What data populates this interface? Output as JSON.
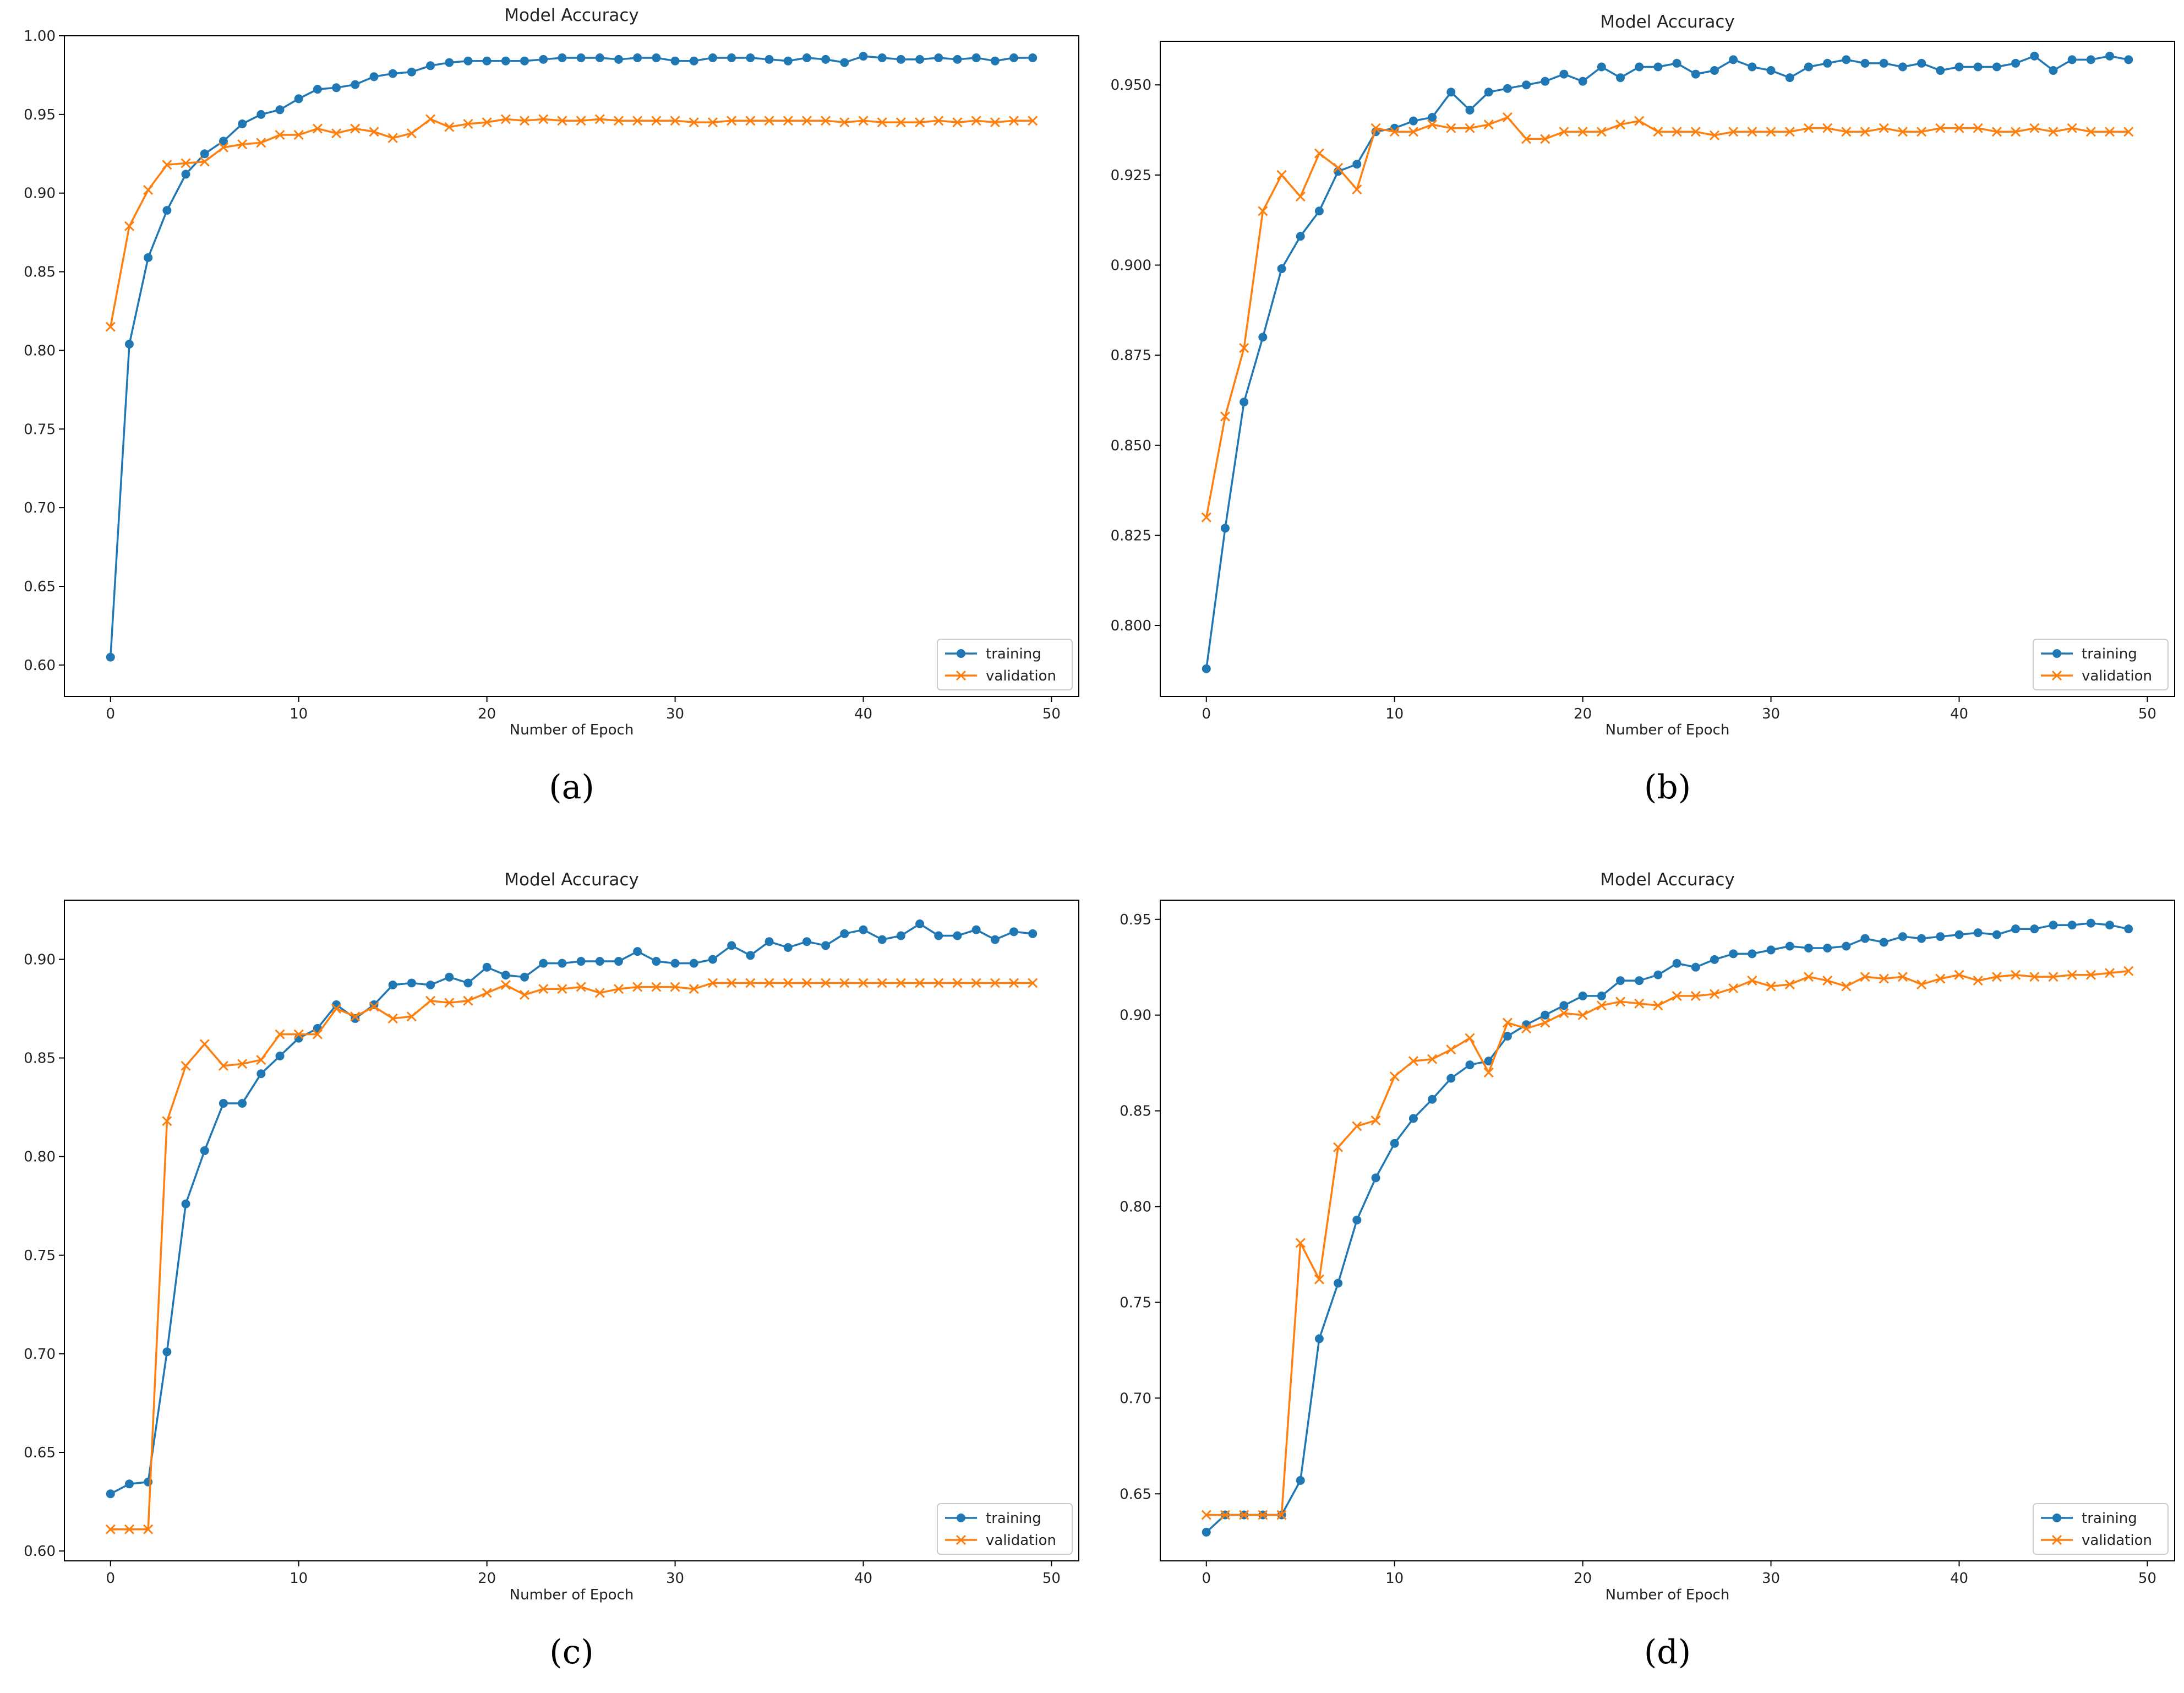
{
  "colors": {
    "training": "#1f77b4",
    "validation": "#ff7f0e",
    "axes": "#000000"
  },
  "chart_data": [
    {
      "type": "line",
      "caption": "(a)",
      "title": "Model Accuracy",
      "xlabel": "Number of Epoch",
      "ylabel": "",
      "xlim": [
        -2.45,
        51.45
      ],
      "ylim": [
        0.58,
        1.0
      ],
      "xticks": [
        0,
        10,
        20,
        30,
        40,
        50
      ],
      "xtick_labels": [
        "0",
        "10",
        "20",
        "30",
        "40",
        "50"
      ],
      "yticks": [
        0.6,
        0.65,
        0.7,
        0.75,
        0.8,
        0.85,
        0.9,
        0.95,
        1.0
      ],
      "ytick_labels": [
        "0.60",
        "0.65",
        "0.70",
        "0.75",
        "0.80",
        "0.85",
        "0.90",
        "0.95",
        "1.00"
      ],
      "legend": {
        "position": "bottom-right",
        "entries": [
          "training",
          "validation"
        ]
      },
      "series": [
        {
          "name": "training",
          "marker": "circle",
          "values": [
            0.605,
            0.804,
            0.859,
            0.889,
            0.912,
            0.925,
            0.933,
            0.944,
            0.95,
            0.953,
            0.96,
            0.966,
            0.967,
            0.969,
            0.974,
            0.976,
            0.977,
            0.981,
            0.983,
            0.984,
            0.984,
            0.984,
            0.984,
            0.985,
            0.986,
            0.986,
            0.986,
            0.985,
            0.986,
            0.986,
            0.984,
            0.984,
            0.986,
            0.986,
            0.986,
            0.985,
            0.984,
            0.986,
            0.985,
            0.983,
            0.987,
            0.986,
            0.985,
            0.985,
            0.986,
            0.985,
            0.986,
            0.984,
            0.986,
            0.986
          ]
        },
        {
          "name": "validation",
          "marker": "x",
          "values": [
            0.815,
            0.879,
            0.902,
            0.918,
            0.919,
            0.92,
            0.929,
            0.931,
            0.932,
            0.937,
            0.937,
            0.941,
            0.938,
            0.941,
            0.939,
            0.935,
            0.938,
            0.947,
            0.942,
            0.944,
            0.945,
            0.947,
            0.946,
            0.947,
            0.946,
            0.946,
            0.947,
            0.946,
            0.946,
            0.946,
            0.946,
            0.945,
            0.945,
            0.946,
            0.946,
            0.946,
            0.946,
            0.946,
            0.946,
            0.945,
            0.946,
            0.945,
            0.945,
            0.945,
            0.946,
            0.945,
            0.946,
            0.945,
            0.946,
            0.946
          ]
        }
      ]
    },
    {
      "type": "line",
      "caption": "(b)",
      "title": "Model Accuracy",
      "xlabel": "Number of Epoch",
      "ylabel": "",
      "xlim": [
        -2.45,
        51.45
      ],
      "ylim": [
        0.7803,
        0.9621
      ],
      "xticks": [
        0,
        10,
        20,
        30,
        40,
        50
      ],
      "xtick_labels": [
        "0",
        "10",
        "20",
        "30",
        "40",
        "50"
      ],
      "yticks": [
        0.8,
        0.825,
        0.85,
        0.875,
        0.9,
        0.925,
        0.95
      ],
      "ytick_labels": [
        "0.800",
        "0.825",
        "0.850",
        "0.875",
        "0.900",
        "0.925",
        "0.950"
      ],
      "legend": {
        "position": "bottom-right",
        "entries": [
          "training",
          "validation"
        ]
      },
      "series": [
        {
          "name": "training",
          "marker": "circle",
          "values": [
            0.788,
            0.827,
            0.862,
            0.88,
            0.899,
            0.908,
            0.915,
            0.926,
            0.928,
            0.937,
            0.938,
            0.94,
            0.941,
            0.948,
            0.943,
            0.948,
            0.949,
            0.95,
            0.951,
            0.953,
            0.951,
            0.955,
            0.952,
            0.955,
            0.955,
            0.956,
            0.953,
            0.954,
            0.957,
            0.955,
            0.954,
            0.952,
            0.955,
            0.956,
            0.957,
            0.956,
            0.956,
            0.955,
            0.956,
            0.954,
            0.955,
            0.955,
            0.955,
            0.956,
            0.958,
            0.954,
            0.957,
            0.957,
            0.958,
            0.957
          ]
        },
        {
          "name": "validation",
          "marker": "x",
          "values": [
            0.83,
            0.858,
            0.877,
            0.915,
            0.925,
            0.919,
            0.931,
            0.927,
            0.921,
            0.938,
            0.937,
            0.937,
            0.939,
            0.938,
            0.938,
            0.939,
            0.941,
            0.935,
            0.935,
            0.937,
            0.937,
            0.937,
            0.939,
            0.94,
            0.937,
            0.937,
            0.937,
            0.936,
            0.937,
            0.937,
            0.937,
            0.937,
            0.938,
            0.938,
            0.937,
            0.937,
            0.938,
            0.937,
            0.937,
            0.938,
            0.938,
            0.938,
            0.937,
            0.937,
            0.938,
            0.937,
            0.938,
            0.937,
            0.937,
            0.937
          ]
        }
      ]
    },
    {
      "type": "line",
      "caption": "(c)",
      "title": "Model Accuracy",
      "xlabel": "Number of Epoch",
      "ylabel": "",
      "xlim": [
        -2.45,
        51.45
      ],
      "ylim": [
        0.595,
        0.93
      ],
      "xticks": [
        0,
        10,
        20,
        30,
        40,
        50
      ],
      "xtick_labels": [
        "0",
        "10",
        "20",
        "30",
        "40",
        "50"
      ],
      "yticks": [
        0.6,
        0.65,
        0.7,
        0.75,
        0.8,
        0.85,
        0.9
      ],
      "ytick_labels": [
        "0.60",
        "0.65",
        "0.70",
        "0.75",
        "0.80",
        "0.85",
        "0.90"
      ],
      "legend": {
        "position": "bottom-right",
        "entries": [
          "training",
          "validation"
        ]
      },
      "series": [
        {
          "name": "training",
          "marker": "circle",
          "values": [
            0.629,
            0.634,
            0.635,
            0.701,
            0.776,
            0.803,
            0.827,
            0.827,
            0.842,
            0.851,
            0.86,
            0.865,
            0.877,
            0.87,
            0.877,
            0.887,
            0.888,
            0.887,
            0.891,
            0.888,
            0.896,
            0.892,
            0.891,
            0.898,
            0.898,
            0.899,
            0.899,
            0.899,
            0.904,
            0.899,
            0.898,
            0.898,
            0.9,
            0.907,
            0.902,
            0.909,
            0.906,
            0.909,
            0.907,
            0.913,
            0.915,
            0.91,
            0.912,
            0.918,
            0.912,
            0.912,
            0.915,
            0.91,
            0.914,
            0.913
          ]
        },
        {
          "name": "validation",
          "marker": "x",
          "values": [
            0.611,
            0.611,
            0.611,
            0.818,
            0.846,
            0.857,
            0.846,
            0.847,
            0.849,
            0.862,
            0.862,
            0.862,
            0.875,
            0.871,
            0.876,
            0.87,
            0.871,
            0.879,
            0.878,
            0.879,
            0.883,
            0.887,
            0.882,
            0.885,
            0.885,
            0.886,
            0.883,
            0.885,
            0.886,
            0.886,
            0.886,
            0.885,
            0.888,
            0.888,
            0.888,
            0.888,
            0.888,
            0.888,
            0.888,
            0.888,
            0.888,
            0.888,
            0.888,
            0.888,
            0.888,
            0.888,
            0.888,
            0.888,
            0.888,
            0.888
          ]
        }
      ]
    },
    {
      "type": "line",
      "caption": "(d)",
      "title": "Model Accuracy",
      "xlabel": "Number of Epoch",
      "ylabel": "",
      "xlim": [
        -2.45,
        51.45
      ],
      "ylim": [
        0.615,
        0.96
      ],
      "xticks": [
        0,
        10,
        20,
        30,
        40,
        50
      ],
      "xtick_labels": [
        "0",
        "10",
        "20",
        "30",
        "40",
        "50"
      ],
      "yticks": [
        0.65,
        0.7,
        0.75,
        0.8,
        0.85,
        0.9,
        0.95
      ],
      "ytick_labels": [
        "0.65",
        "0.70",
        "0.75",
        "0.80",
        "0.85",
        "0.90",
        "0.95"
      ],
      "legend": {
        "position": "bottom-right",
        "entries": [
          "training",
          "validation"
        ]
      },
      "series": [
        {
          "name": "training",
          "marker": "circle",
          "values": [
            0.63,
            0.639,
            0.639,
            0.639,
            0.639,
            0.657,
            0.731,
            0.76,
            0.793,
            0.815,
            0.833,
            0.846,
            0.856,
            0.867,
            0.874,
            0.876,
            0.889,
            0.895,
            0.9,
            0.905,
            0.91,
            0.91,
            0.918,
            0.918,
            0.921,
            0.927,
            0.925,
            0.929,
            0.932,
            0.932,
            0.934,
            0.936,
            0.935,
            0.935,
            0.936,
            0.94,
            0.938,
            0.941,
            0.94,
            0.941,
            0.942,
            0.943,
            0.942,
            0.945,
            0.945,
            0.947,
            0.947,
            0.948,
            0.947,
            0.945
          ]
        },
        {
          "name": "validation",
          "marker": "x",
          "values": [
            0.639,
            0.639,
            0.639,
            0.639,
            0.639,
            0.781,
            0.762,
            0.831,
            0.842,
            0.845,
            0.868,
            0.876,
            0.877,
            0.882,
            0.888,
            0.87,
            0.896,
            0.893,
            0.896,
            0.901,
            0.9,
            0.905,
            0.907,
            0.906,
            0.905,
            0.91,
            0.91,
            0.911,
            0.914,
            0.918,
            0.915,
            0.916,
            0.92,
            0.918,
            0.915,
            0.92,
            0.919,
            0.92,
            0.916,
            0.919,
            0.921,
            0.918,
            0.92,
            0.921,
            0.92,
            0.92,
            0.921,
            0.921,
            0.922,
            0.923
          ]
        }
      ]
    }
  ]
}
